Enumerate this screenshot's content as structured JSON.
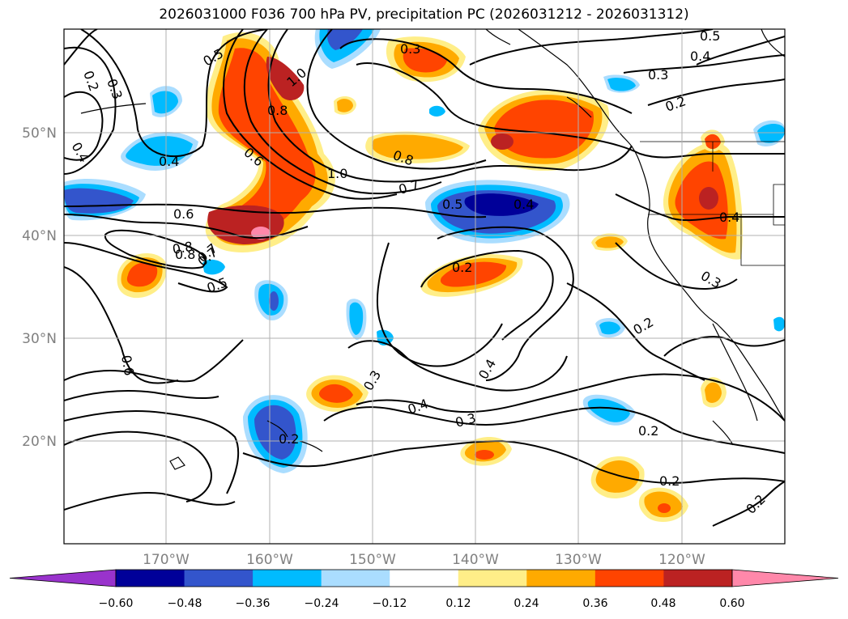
{
  "title": "2026031000 F036 700 hPa PV, precipitation PC (2026031212 - 2026031312)",
  "lat_labels": [
    "50°N",
    "40°N",
    "30°N",
    "20°N"
  ],
  "lon_labels": [
    "170°W",
    "160°W",
    "150°W",
    "140°W",
    "130°W",
    "120°W"
  ],
  "colorbar": {
    "colors": [
      "#9933cc",
      "#000099",
      "#3355cc",
      "#00bbff",
      "#aaddff",
      "#ffffff",
      "#ffee88",
      "#ffaa00",
      "#ff4400",
      "#bb2222",
      "#ff88aa"
    ],
    "ticks": [
      "−0.60",
      "−0.48",
      "−0.36",
      "−0.24",
      "−0.12",
      "0.12",
      "0.24",
      "0.36",
      "0.48",
      "0.60"
    ]
  },
  "contour_labels": [
    "0.2",
    "0.3",
    "0.4",
    "0.5",
    "0.6",
    "0.7",
    "0.8",
    "1.0",
    "0.3",
    "0.5",
    "0.4",
    "0.3",
    "0.2",
    "0.8",
    "0.8",
    "0.7",
    "0.5",
    "0.4",
    "0.2",
    "0.4",
    "0.3",
    "0.6",
    "0.8",
    "0.7",
    "0.5",
    "0.6",
    "1.0",
    "0.4",
    "0.3",
    "0.4",
    "0.2",
    "0.2",
    "0.2",
    "0.3",
    "0.4",
    "0.2",
    "0.2"
  ]
}
